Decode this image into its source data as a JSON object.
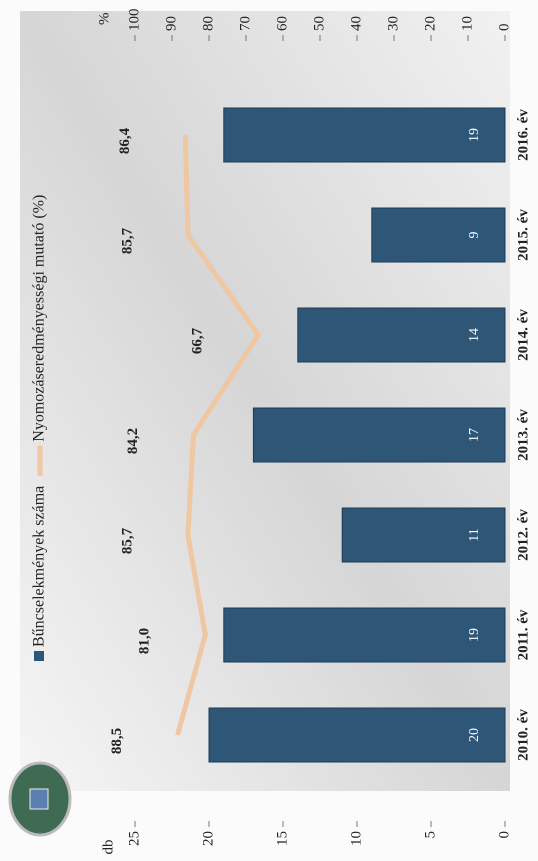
{
  "chart_data": {
    "type": "bar_line",
    "categories": [
      "2010. év",
      "2011. év",
      "2012. év",
      "2013. év",
      "2014. év",
      "2015. év",
      "2016. év"
    ],
    "series": [
      {
        "name": "Bűncselekmények száma",
        "type": "bar",
        "color": "#2d5677",
        "values": [
          20,
          19,
          11,
          17,
          14,
          9,
          19
        ]
      },
      {
        "name": "Nyomozáseredményességi mutató (%)",
        "type": "line",
        "axis": "y2",
        "color": "#efc7a2",
        "values": [
          88.5,
          81.0,
          85.7,
          84.2,
          66.7,
          85.7,
          86.4
        ],
        "value_labels": [
          "88,5",
          "81,0",
          "85,7",
          "84,2",
          "66,7",
          "85,7",
          "86,4"
        ]
      }
    ],
    "ylabel": "db",
    "y2label": "%",
    "ylim": [
      0,
      25
    ],
    "yticks": [
      0,
      5,
      10,
      15,
      20,
      25
    ],
    "y2lim": [
      0,
      100
    ],
    "y2ticks": [
      0,
      10,
      20,
      30,
      40,
      50,
      60,
      70,
      80,
      90,
      100
    ]
  }
}
